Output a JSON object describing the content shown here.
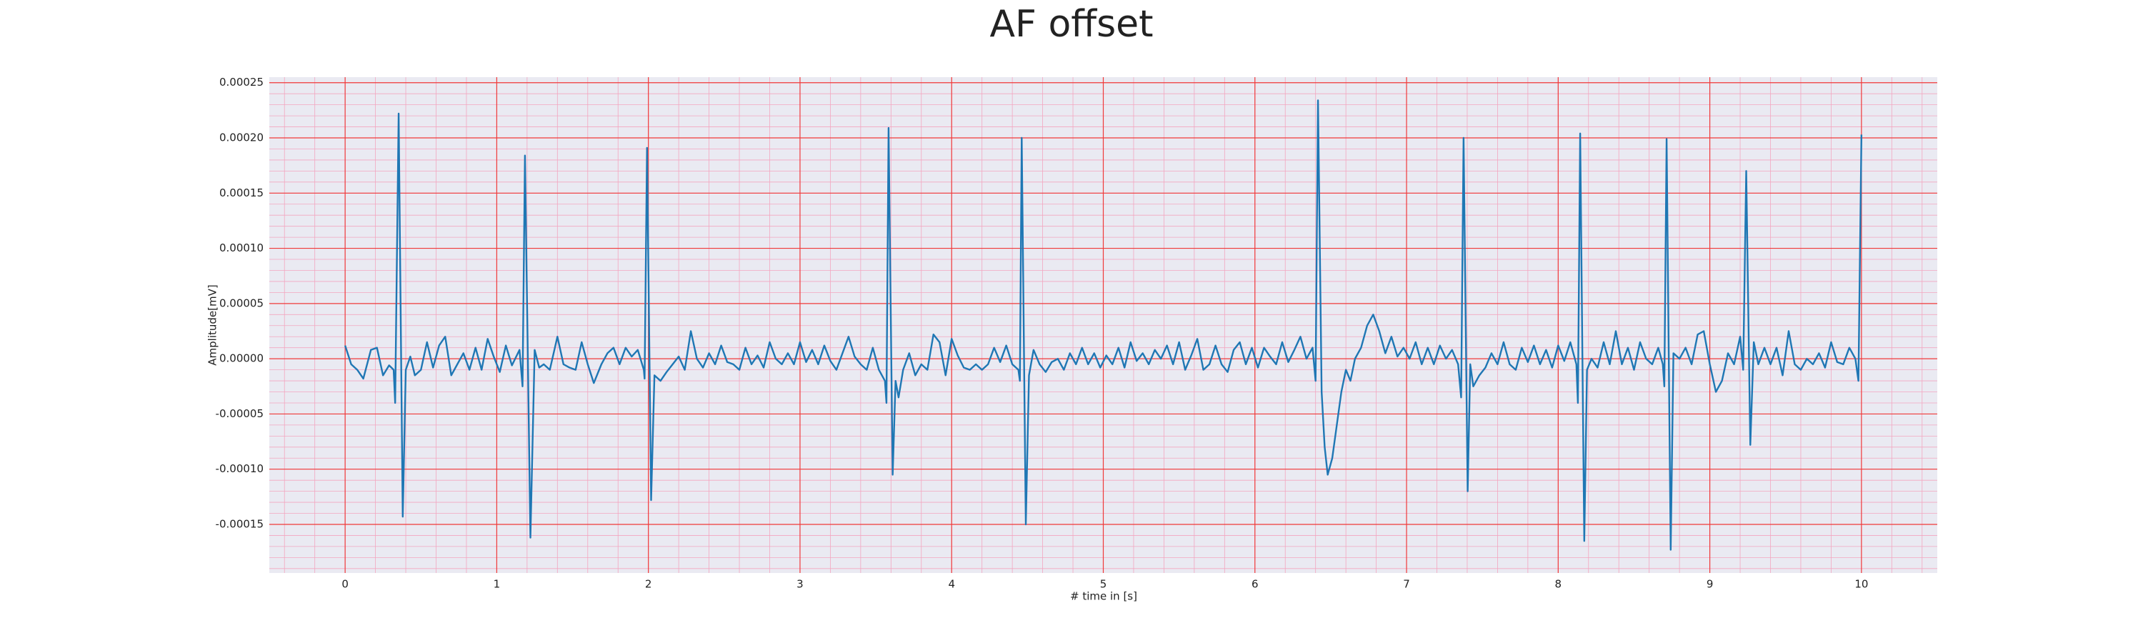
{
  "chart_data": {
    "type": "line",
    "title": "AF offset",
    "x_label": "# time in [s]",
    "y_label": "Amplitude[mV]",
    "xlim": [
      -0.5,
      10.5
    ],
    "ylim": [
      -0.000194,
      0.000255
    ],
    "xticks": [
      0,
      1,
      2,
      3,
      4,
      5,
      6,
      7,
      8,
      9,
      10
    ],
    "yticks": [
      0.00025,
      {
        "value": 0.0002,
        "label": "0.00020"
      },
      0.00015,
      {
        "value": 0.0001,
        "label": "0.00010"
      },
      5e-05,
      {
        "value": 0,
        "label": "0.00000"
      },
      -5e-05,
      {
        "value": -0.0001,
        "label": "-0.00010"
      },
      -0.00015
    ],
    "grid": true,
    "grid_color": "#f03a3a",
    "minor_grid_color": "#f3a6c0",
    "grid_minor_divisions": 5,
    "background": "#eaeaf2",
    "series": [
      {
        "color": "#1f77b4",
        "x": [
          0.0,
          0.04,
          0.08,
          0.12,
          0.17,
          0.21,
          0.25,
          0.29,
          0.32,
          0.33,
          0.353,
          0.38,
          0.4,
          0.43,
          0.46,
          0.5,
          0.54,
          0.58,
          0.62,
          0.66,
          0.7,
          0.74,
          0.78,
          0.82,
          0.86,
          0.9,
          0.94,
          0.98,
          1.02,
          1.06,
          1.1,
          1.15,
          1.17,
          1.186,
          1.222,
          1.25,
          1.28,
          1.31,
          1.35,
          1.4,
          1.44,
          1.48,
          1.52,
          1.56,
          1.6,
          1.64,
          1.69,
          1.73,
          1.77,
          1.81,
          1.85,
          1.89,
          1.93,
          1.97,
          1.975,
          1.991,
          2.018,
          2.04,
          2.08,
          2.12,
          2.16,
          2.2,
          2.24,
          2.28,
          2.32,
          2.36,
          2.4,
          2.44,
          2.48,
          2.52,
          2.56,
          2.6,
          2.64,
          2.68,
          2.72,
          2.76,
          2.8,
          2.84,
          2.88,
          2.92,
          2.96,
          3.0,
          3.04,
          3.08,
          3.12,
          3.16,
          3.2,
          3.24,
          3.28,
          3.32,
          3.36,
          3.4,
          3.44,
          3.48,
          3.52,
          3.56,
          3.57,
          3.584,
          3.611,
          3.63,
          3.65,
          3.68,
          3.72,
          3.76,
          3.8,
          3.84,
          3.88,
          3.92,
          3.96,
          4.0,
          4.04,
          4.08,
          4.12,
          4.16,
          4.2,
          4.24,
          4.28,
          4.32,
          4.36,
          4.4,
          4.44,
          4.45,
          4.462,
          4.489,
          4.51,
          4.54,
          4.58,
          4.62,
          4.66,
          4.7,
          4.74,
          4.78,
          4.82,
          4.86,
          4.9,
          4.94,
          4.98,
          5.02,
          5.06,
          5.1,
          5.14,
          5.18,
          5.22,
          5.26,
          5.3,
          5.34,
          5.38,
          5.42,
          5.46,
          5.5,
          5.54,
          5.58,
          5.62,
          5.66,
          5.7,
          5.74,
          5.78,
          5.82,
          5.86,
          5.9,
          5.94,
          5.98,
          6.02,
          6.06,
          6.1,
          6.14,
          6.18,
          6.22,
          6.26,
          6.3,
          6.34,
          6.38,
          6.4,
          6.416,
          6.44,
          6.46,
          6.48,
          6.51,
          6.54,
          6.57,
          6.6,
          6.63,
          6.66,
          6.7,
          6.74,
          6.78,
          6.82,
          6.86,
          6.9,
          6.94,
          6.98,
          7.02,
          7.06,
          7.1,
          7.14,
          7.18,
          7.22,
          7.26,
          7.3,
          7.34,
          7.36,
          7.376,
          7.403,
          7.42,
          7.44,
          7.48,
          7.52,
          7.56,
          7.6,
          7.64,
          7.68,
          7.72,
          7.76,
          7.8,
          7.84,
          7.88,
          7.92,
          7.96,
          8.0,
          8.04,
          8.08,
          8.12,
          8.13,
          8.145,
          8.172,
          8.19,
          8.22,
          8.26,
          8.3,
          8.34,
          8.38,
          8.42,
          8.46,
          8.5,
          8.54,
          8.58,
          8.62,
          8.66,
          8.69,
          8.7,
          8.715,
          8.742,
          8.76,
          8.8,
          8.84,
          8.88,
          8.92,
          8.96,
          9.0,
          9.04,
          9.08,
          9.12,
          9.16,
          9.2,
          9.22,
          9.24,
          9.267,
          9.29,
          9.32,
          9.36,
          9.4,
          9.44,
          9.48,
          9.52,
          9.56,
          9.6,
          9.64,
          9.68,
          9.72,
          9.76,
          9.8,
          9.84,
          9.88,
          9.92,
          9.96,
          9.98,
          10.0
        ],
        "values": [
          1.2e-05,
          -5e-06,
          -1e-05,
          -1.8e-05,
          8e-06,
          1e-05,
          -1.5e-05,
          -6e-06,
          -1e-05,
          -4e-05,
          0.000222,
          -0.000143,
          -1e-05,
          2e-06,
          -1.5e-05,
          -1e-05,
          1.5e-05,
          -8e-06,
          1.2e-05,
          2e-05,
          -1.5e-05,
          -5e-06,
          5e-06,
          -1e-05,
          1e-05,
          -1e-05,
          1.8e-05,
          2e-06,
          -1.2e-05,
          1.2e-05,
          -6e-06,
          8e-06,
          -2.5e-05,
          0.000184,
          -0.000162,
          8e-06,
          -8e-06,
          -5e-06,
          -1e-05,
          2e-05,
          -5e-06,
          -8e-06,
          -1e-05,
          1.5e-05,
          -5e-06,
          -2.2e-05,
          -5e-06,
          5e-06,
          1e-05,
          -5e-06,
          1e-05,
          2e-06,
          8e-06,
          -1e-05,
          -1.8e-05,
          0.000191,
          -0.000128,
          -1.5e-05,
          -2e-05,
          -1.2e-05,
          -5e-06,
          2e-06,
          -1e-05,
          2.5e-05,
          0,
          -8e-06,
          5e-06,
          -5e-06,
          1.2e-05,
          -3e-06,
          -5e-06,
          -1e-05,
          1e-05,
          -5e-06,
          3e-06,
          -8e-06,
          1.5e-05,
          0,
          -5e-06,
          5e-06,
          -5e-06,
          1.5e-05,
          -3e-06,
          8e-06,
          -5e-06,
          1.2e-05,
          -2e-06,
          -1e-05,
          5e-06,
          2e-05,
          2e-06,
          -5e-06,
          -1e-05,
          1e-05,
          -1e-05,
          -2e-05,
          -4e-05,
          0.000209,
          -0.000105,
          -2e-05,
          -3.5e-05,
          -1e-05,
          5e-06,
          -1.5e-05,
          -5e-06,
          -1e-05,
          2.2e-05,
          1.5e-05,
          -1.5e-05,
          1.8e-05,
          3e-06,
          -8e-06,
          -1e-05,
          -5e-06,
          -1e-05,
          -5e-06,
          1e-05,
          -3e-06,
          1.2e-05,
          -5e-06,
          -1e-05,
          -2e-05,
          0.0002,
          -0.00015,
          -1.5e-05,
          8e-06,
          -5e-06,
          -1.2e-05,
          -3e-06,
          0,
          -1e-05,
          5e-06,
          -5e-06,
          1e-05,
          -5e-06,
          5e-06,
          -8e-06,
          3e-06,
          -5e-06,
          1e-05,
          -8e-06,
          1.5e-05,
          -2e-06,
          5e-06,
          -5e-06,
          8e-06,
          0,
          1.2e-05,
          -5e-06,
          1.5e-05,
          -1e-05,
          3e-06,
          1.8e-05,
          -1e-05,
          -5e-06,
          1.2e-05,
          -5e-06,
          -1.2e-05,
          8e-06,
          1.5e-05,
          -5e-06,
          1e-05,
          -8e-06,
          1e-05,
          2e-06,
          -5e-06,
          1.5e-05,
          -3e-06,
          8e-06,
          2e-05,
          0,
          1e-05,
          -2e-05,
          0.000234,
          -3e-05,
          -8e-05,
          -0.000105,
          -9e-05,
          -6e-05,
          -3e-05,
          -1e-05,
          -2e-05,
          0,
          1e-05,
          3e-05,
          4e-05,
          2.5e-05,
          5e-06,
          2e-05,
          2e-06,
          1e-05,
          0,
          1.5e-05,
          -5e-06,
          1e-05,
          -5e-06,
          1.2e-05,
          0,
          8e-06,
          -5e-06,
          -3.5e-05,
          0.0002,
          -0.00012,
          -5e-06,
          -2.5e-05,
          -1.5e-05,
          -8e-06,
          5e-06,
          -5e-06,
          1.5e-05,
          -5e-06,
          -1e-05,
          1e-05,
          -3e-06,
          1.2e-05,
          -5e-06,
          8e-06,
          -8e-06,
          1.2e-05,
          -2e-06,
          1.5e-05,
          -5e-06,
          -4e-05,
          0.000204,
          -0.000165,
          -1e-05,
          0,
          -8e-06,
          1.5e-05,
          -5e-06,
          2.5e-05,
          -5e-06,
          1e-05,
          -1e-05,
          1.5e-05,
          0,
          -5e-06,
          1e-05,
          -5e-06,
          -2.5e-05,
          0.000199,
          -0.000173,
          5e-06,
          0,
          1e-05,
          -5e-06,
          2.2e-05,
          2.5e-05,
          -5e-06,
          -3e-05,
          -2e-05,
          5e-06,
          -5e-06,
          2e-05,
          -1e-05,
          0.00017,
          -7.8e-05,
          1.5e-05,
          -5e-06,
          1e-05,
          -5e-06,
          1e-05,
          -1.5e-05,
          2.5e-05,
          -5e-06,
          -1e-05,
          0,
          -5e-06,
          5e-06,
          -8e-06,
          1.5e-05,
          -3e-06,
          -5e-06,
          1e-05,
          0,
          -2e-05,
          0.000203
        ]
      }
    ]
  }
}
